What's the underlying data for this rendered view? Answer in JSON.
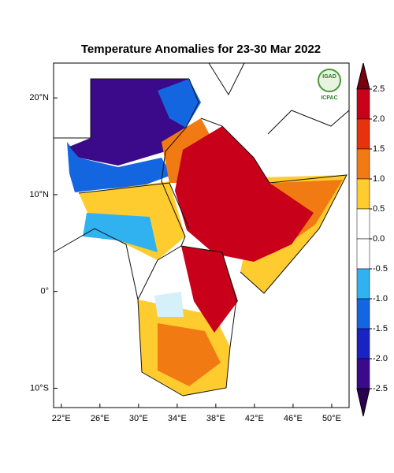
{
  "chart_data": {
    "type": "map",
    "title": "Temperature Anomalies for 23-30 Mar 2022",
    "xlim": [
      21.2,
      51.8
    ],
    "ylim": [
      -12,
      23.6
    ],
    "xticks": [
      {
        "value": 22,
        "label": "22°E"
      },
      {
        "value": 26,
        "label": "26°E"
      },
      {
        "value": 30,
        "label": "30°E"
      },
      {
        "value": 34,
        "label": "34°E"
      },
      {
        "value": 38,
        "label": "38°E"
      },
      {
        "value": 42,
        "label": "42°E"
      },
      {
        "value": 46,
        "label": "46°E"
      },
      {
        "value": 50,
        "label": "50°E"
      }
    ],
    "yticks": [
      {
        "value": 20,
        "label": "20°N"
      },
      {
        "value": 10,
        "label": "10°N"
      },
      {
        "value": 0,
        "label": "0°"
      },
      {
        "value": -10,
        "label": "10°S"
      }
    ],
    "colorbar": {
      "ticks": [
        2.5,
        {
          "value": 2.0,
          "label": "2.0"
        },
        1.5,
        {
          "value": 1.0,
          "label": "1.0"
        },
        0.5,
        {
          "value": 0.0,
          "label": "0.0"
        },
        -0.5,
        {
          "value": -1.0,
          "label": "-1.0"
        },
        -1.5,
        {
          "value": -2.0,
          "label": "-2.0"
        },
        -2.5
      ],
      "colors": [
        "#7a0010",
        "#c8001a",
        "#e8320e",
        "#f27a12",
        "#ffcc30",
        "#ffffff",
        "#ffffff",
        "#2fb2ef",
        "#1466e0",
        "#1a22c4",
        "#3a0a8a",
        "#2a0050"
      ]
    },
    "logo": {
      "name": "IGAD",
      "org": "ICPAC"
    }
  }
}
